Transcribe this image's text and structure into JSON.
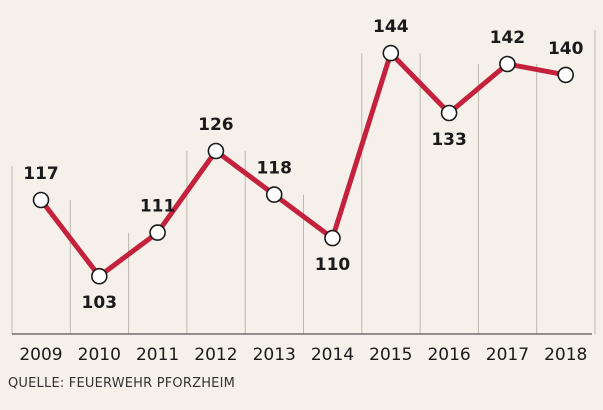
{
  "colors": {
    "background": "#f5f1ea",
    "line": "#c4223c",
    "gridline": "#bdb7ad",
    "axis": "#555555",
    "text": "#1a1a1a",
    "marker_fill": "#ffffff"
  },
  "source": "QUELLE: FEUERWEHR PFORZHEIM",
  "chart_data": {
    "type": "line",
    "title": "",
    "xlabel": "",
    "ylabel": "",
    "categories": [
      "2009",
      "2010",
      "2011",
      "2012",
      "2013",
      "2014",
      "2015",
      "2016",
      "2017",
      "2018"
    ],
    "series": [
      {
        "values": [
          117,
          103,
          111,
          126,
          118,
          110,
          144,
          133,
          142,
          140
        ],
        "labels": [
          "117",
          "103",
          "111",
          "126",
          "118",
          "110",
          "144",
          "133",
          "142",
          "140"
        ],
        "label_positions": [
          "above",
          "below",
          "above",
          "above",
          "above",
          "below",
          "above",
          "below",
          "above",
          "above"
        ]
      }
    ],
    "ylim": [
      95,
      149
    ],
    "grid": "vertical",
    "legend": "none",
    "markers": "open-circle",
    "data_labels": true
  }
}
